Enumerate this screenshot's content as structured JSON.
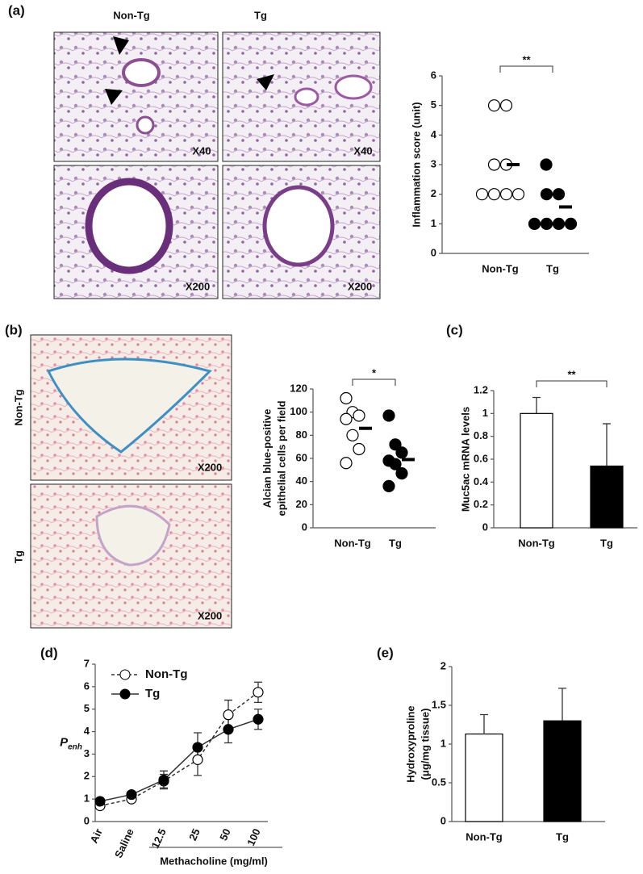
{
  "panel_labels": [
    "(a)",
    "(b)",
    "(c)",
    "(d)",
    "(e)"
  ],
  "image_headers": [
    "Non-Tg",
    "Tg"
  ],
  "side_labels": [
    "Non-Tg",
    "Tg"
  ],
  "images": [
    {
      "caption": "X40"
    },
    {
      "caption": "X40"
    },
    {
      "caption": "X200"
    },
    {
      "caption": "X200"
    },
    {
      "caption": "X200"
    },
    {
      "caption": "X200"
    }
  ],
  "chart_data": [
    {
      "type": "dot",
      "y_label": [
        "Inflammation score (unit)"
      ],
      "categories": [
        "Non-Tg",
        "Tg"
      ],
      "colors": [
        "#ffffff",
        "#000000"
      ],
      "values": [
        [
          5,
          5,
          3,
          3,
          2,
          2,
          2,
          2
        ],
        [
          3,
          2,
          2,
          1,
          1,
          1,
          1
        ]
      ],
      "means": [
        3,
        1.57
      ],
      "significance": "**",
      "ylim": [
        0,
        6
      ],
      "yticks": [
        0,
        1,
        2,
        3,
        4,
        5,
        6
      ]
    },
    {
      "type": "dot",
      "y_label": [
        "Alcian blue-positive",
        "epithelial cells per field"
      ],
      "categories": [
        "Non-Tg",
        "Tg"
      ],
      "colors": [
        "#ffffff",
        "#000000"
      ],
      "values": [
        [
          112,
          100,
          97,
          94,
          80,
          68,
          56
        ],
        [
          97,
          72,
          65,
          58,
          55,
          47,
          36
        ]
      ],
      "means": [
        86,
        59
      ],
      "significance": "*",
      "ylim": [
        0,
        120
      ],
      "yticks": [
        0,
        20,
        40,
        60,
        80,
        100,
        120
      ]
    },
    {
      "type": "bar",
      "y_label": [
        "Muc5ac mRNA levels"
      ],
      "categories": [
        "Non-Tg",
        "Tg"
      ],
      "colors": [
        "#ffffff",
        "#000000"
      ],
      "values": [
        1.0,
        0.54
      ],
      "errors": [
        0.14,
        0.37
      ],
      "significance": "**",
      "ylim": [
        0,
        1.2
      ],
      "yticks": [
        0,
        0.2,
        0.4,
        0.6,
        0.8,
        1,
        1.2
      ]
    },
    {
      "type": "line",
      "y_label": "P",
      "y_label_subscript": "enh",
      "x_label": "Methacholine (mg/ml)",
      "categories": [
        "Air",
        "Saline",
        "12.5",
        "25",
        "50",
        "100"
      ],
      "series": [
        {
          "name": "Non-Tg",
          "color": "#333333",
          "marker_fill": "#ffffff",
          "dashed": true,
          "values": [
            0.7,
            1.0,
            1.8,
            2.75,
            4.75,
            5.75
          ],
          "errors": [
            0.1,
            0.1,
            0.3,
            0.7,
            0.65,
            0.45
          ]
        },
        {
          "name": "Tg",
          "color": "#333333",
          "marker_fill": "#000000",
          "dashed": false,
          "values": [
            0.9,
            1.2,
            1.85,
            3.3,
            4.1,
            4.55
          ],
          "errors": [
            0.1,
            0.1,
            0.4,
            0.65,
            0.6,
            0.45
          ]
        }
      ],
      "ylim": [
        0,
        7
      ],
      "yticks": [
        0,
        1,
        2,
        3,
        4,
        5,
        6,
        7
      ]
    },
    {
      "type": "bar",
      "y_label": [
        "Hydroxyproline",
        "(μg/mg tissue)"
      ],
      "categories": [
        "Non-Tg",
        "Tg"
      ],
      "colors": [
        "#ffffff",
        "#000000"
      ],
      "values": [
        1.13,
        1.3
      ],
      "errors": [
        0.25,
        0.42
      ],
      "ylim": [
        0,
        2
      ],
      "yticks": [
        0,
        0.5,
        1,
        1.5,
        2
      ]
    }
  ]
}
